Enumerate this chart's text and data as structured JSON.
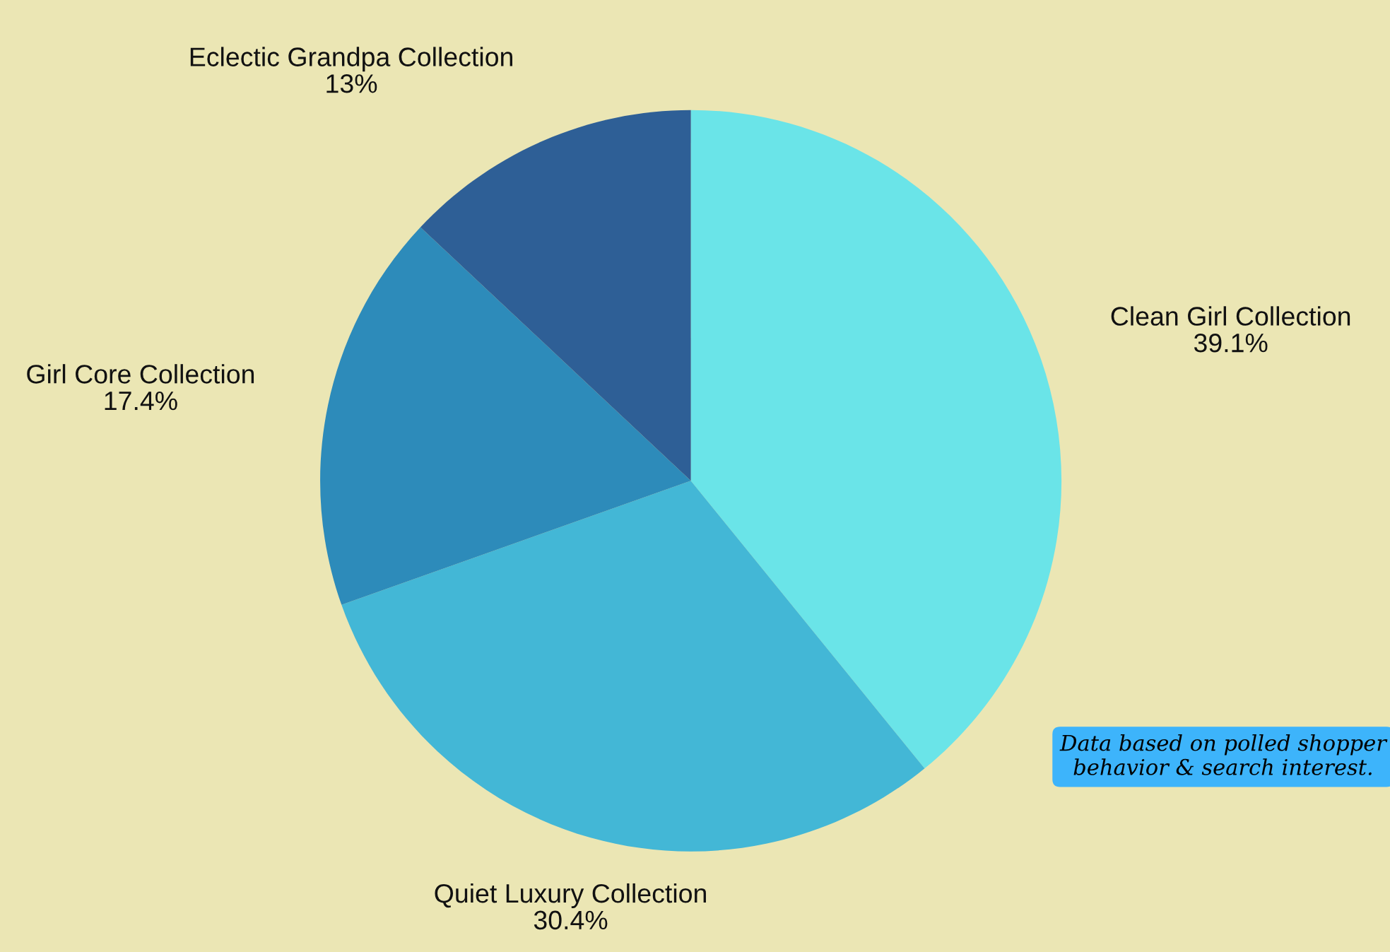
{
  "chart_data": {
    "type": "pie",
    "categories": [
      "Clean Girl Collection",
      "Quiet Luxury Collection",
      "Girl Core Collection",
      "Eclectic Grandpa Collection"
    ],
    "values": [
      39.1,
      30.4,
      17.4,
      13
    ],
    "value_labels": [
      "39.1%",
      "30.4%",
      "17.4%",
      "13%"
    ],
    "colors": [
      "#6ae4e8",
      "#43b7d6",
      "#2d8bba",
      "#2e5f96"
    ],
    "annotations": [
      "Data based on polled shopper\nbehavior & search interest."
    ]
  }
}
